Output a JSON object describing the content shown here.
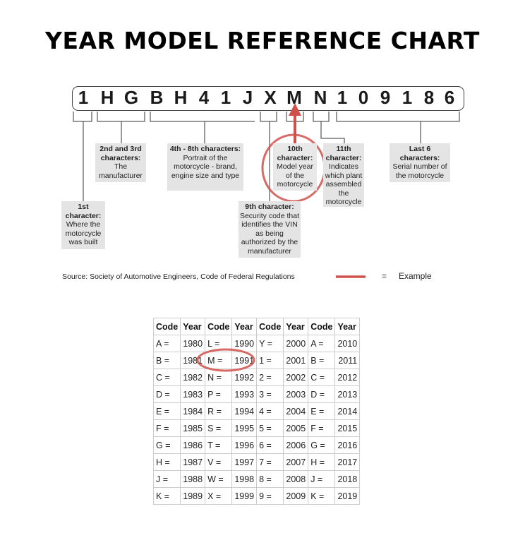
{
  "title": "YEAR MODEL REFERENCE CHART",
  "vin": [
    "1",
    "H",
    "G",
    "B",
    "H",
    "4",
    "1",
    "J",
    "X",
    "M",
    "N",
    "1",
    "0",
    "9",
    "1",
    "8",
    "6"
  ],
  "notes": [
    {
      "heading": "1st character:",
      "text": "Where the motorcycle was built"
    },
    {
      "heading": "2nd and 3rd characters:",
      "text": "The manufacturer"
    },
    {
      "heading": "4th - 8th characters:",
      "text": "Portrait of the motorcycle - brand, engine size and type"
    },
    {
      "heading": "9th character:",
      "text": "Security code that identifies the VIN as being authorized by the manufacturer"
    },
    {
      "heading": "10th character:",
      "text": "Model year of the motorcycle"
    },
    {
      "heading": "11th character:",
      "text": "Indicates which plant assembled the motorcycle"
    },
    {
      "heading": "Last 6 characters:",
      "text": "Serial number of the motorcycle"
    }
  ],
  "source": "Source:  Society of Automotive Engineers, Code of Federal Regulations",
  "legend": {
    "equals": "=",
    "label": "Example",
    "color": "#d0504a"
  },
  "table": {
    "headers": [
      "Code",
      "Year",
      "Code",
      "Year",
      "Code",
      "Year",
      "Code",
      "Year"
    ],
    "rows": [
      [
        "A =",
        "1980",
        "L =",
        "1990",
        "Y =",
        "2000",
        "A =",
        "2010"
      ],
      [
        "B =",
        "1981",
        "M =",
        "1991",
        "1 =",
        "2001",
        "B =",
        "2011"
      ],
      [
        "C =",
        "1982",
        "N =",
        "1992",
        "2 =",
        "2002",
        "C =",
        "2012"
      ],
      [
        "D =",
        "1983",
        "P =",
        "1993",
        "3 =",
        "2003",
        "D =",
        "2013"
      ],
      [
        "E =",
        "1984",
        "R =",
        "1994",
        "4 =",
        "2004",
        "E =",
        "2014"
      ],
      [
        "F =",
        "1985",
        "S =",
        "1995",
        "5 =",
        "2005",
        "F =",
        "2015"
      ],
      [
        "G =",
        "1986",
        "T =",
        "1996",
        "6 =",
        "2006",
        "G =",
        "2016"
      ],
      [
        "H =",
        "1987",
        "V =",
        "1997",
        "7 =",
        "2007",
        "H =",
        "2017"
      ],
      [
        "J =",
        "1988",
        "W =",
        "1998",
        "8 =",
        "2008",
        "J =",
        "2018"
      ],
      [
        "K =",
        "1989",
        "X =",
        "1999",
        "9 =",
        "2009",
        "K =",
        "2019"
      ]
    ]
  }
}
